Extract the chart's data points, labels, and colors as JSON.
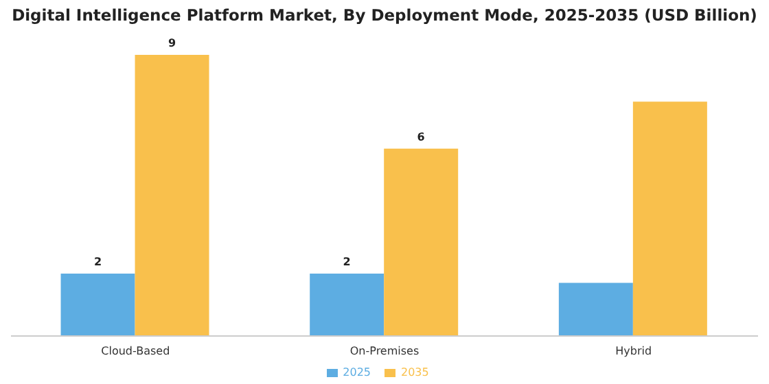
{
  "chart_data": {
    "type": "bar",
    "title": "Digital Intelligence Platform Market, By Deployment Mode, 2025-2035 (USD Billion)",
    "categories": [
      "Cloud-Based",
      "On-Premises",
      "Hybrid"
    ],
    "legend": "bottom",
    "series": [
      {
        "name": "2025",
        "color": "#5dade2",
        "values": [
          2,
          2,
          1.7
        ],
        "value_labels": [
          "2",
          "2",
          null
        ]
      },
      {
        "name": "2035",
        "color": "#f9c04c",
        "values": [
          9,
          6,
          7.5
        ],
        "value_labels": [
          "9",
          "6",
          null
        ]
      }
    ]
  }
}
